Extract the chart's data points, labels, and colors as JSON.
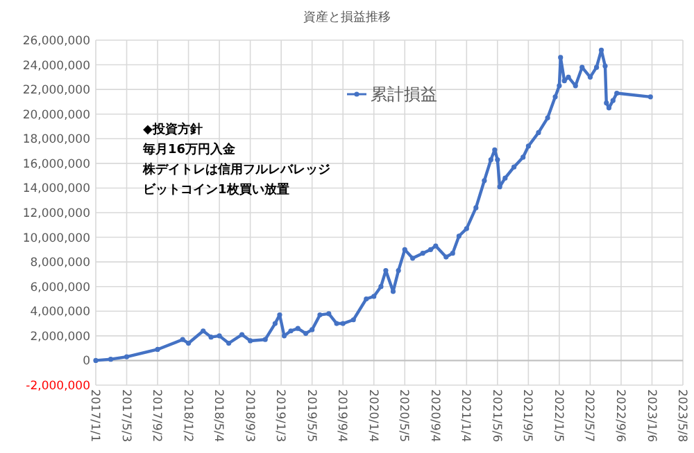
{
  "chart_data": {
    "type": "line",
    "title": "資産と損益推移",
    "marker": "circle",
    "grid": true,
    "legend": "top",
    "annotations": [
      "◆投資方針",
      "毎月16万円入金",
      "株デイトレは信用フルレバレッジ",
      "ビットコイン1枚買い放置"
    ],
    "xlim": [
      "2017-01-01",
      "2023-05-08"
    ],
    "xticks": [
      {
        "value": "2017-01-01",
        "label": "2017/1/1"
      },
      {
        "value": "2017-05-03",
        "label": "2017/5/3"
      },
      {
        "value": "2017-09-02",
        "label": "2017/9/2"
      },
      {
        "value": "2018-01-02",
        "label": "2018/1/2"
      },
      {
        "value": "2018-05-04",
        "label": "2018/5/4"
      },
      {
        "value": "2018-09-03",
        "label": "2018/9/3"
      },
      {
        "value": "2019-01-03",
        "label": "2019/1/3"
      },
      {
        "value": "2019-05-05",
        "label": "2019/5/5"
      },
      {
        "value": "2019-09-04",
        "label": "2019/9/4"
      },
      {
        "value": "2020-01-04",
        "label": "2020/1/4"
      },
      {
        "value": "2020-05-05",
        "label": "2020/5/5"
      },
      {
        "value": "2020-09-04",
        "label": "2020/9/4"
      },
      {
        "value": "2021-01-04",
        "label": "2021/1/4"
      },
      {
        "value": "2021-05-06",
        "label": "2021/5/6"
      },
      {
        "value": "2021-09-05",
        "label": "2021/9/5"
      },
      {
        "value": "2022-01-05",
        "label": "2022/1/5"
      },
      {
        "value": "2022-05-07",
        "label": "2022/5/7"
      },
      {
        "value": "2022-09-06",
        "label": "2022/9/6"
      },
      {
        "value": "2023-01-06",
        "label": "2023/1/6"
      },
      {
        "value": "2023-05-08",
        "label": "2023/5/8"
      }
    ],
    "ylim": [
      -2000000,
      26000000
    ],
    "yticks": [
      {
        "value": -2000000,
        "label": "-2,000,000"
      },
      {
        "value": 0,
        "label": "0"
      },
      {
        "value": 2000000,
        "label": "2,000,000"
      },
      {
        "value": 4000000,
        "label": "4,000,000"
      },
      {
        "value": 6000000,
        "label": "6,000,000"
      },
      {
        "value": 8000000,
        "label": "8,000,000"
      },
      {
        "value": 10000000,
        "label": "10,000,000"
      },
      {
        "value": 12000000,
        "label": "12,000,000"
      },
      {
        "value": 14000000,
        "label": "14,000,000"
      },
      {
        "value": 16000000,
        "label": "16,000,000"
      },
      {
        "value": 18000000,
        "label": "18,000,000"
      },
      {
        "value": 20000000,
        "label": "20,000,000"
      },
      {
        "value": 22000000,
        "label": "22,000,000"
      },
      {
        "value": 24000000,
        "label": "24,000,000"
      },
      {
        "value": 26000000,
        "label": "26,000,000"
      }
    ],
    "series": [
      {
        "name": "累計損益",
        "color": "#4472c4",
        "x": [
          "2017-01-01",
          "2017-03-01",
          "2017-05-03",
          "2017-09-02",
          "2017-12-10",
          "2018-01-02",
          "2018-03-01",
          "2018-04-01",
          "2018-05-04",
          "2018-06-10",
          "2018-08-01",
          "2018-09-03",
          "2018-11-01",
          "2018-12-10",
          "2018-12-28",
          "2019-01-15",
          "2019-02-10",
          "2019-03-10",
          "2019-04-10",
          "2019-05-05",
          "2019-06-05",
          "2019-07-10",
          "2019-08-10",
          "2019-09-04",
          "2019-10-15",
          "2019-12-05",
          "2020-01-04",
          "2020-02-01",
          "2020-02-20",
          "2020-03-20",
          "2020-04-10",
          "2020-05-05",
          "2020-06-05",
          "2020-07-15",
          "2020-08-15",
          "2020-09-04",
          "2020-10-15",
          "2020-11-10",
          "2020-12-05",
          "2021-01-04",
          "2021-02-10",
          "2021-03-15",
          "2021-04-10",
          "2021-04-25",
          "2021-05-06",
          "2021-05-15",
          "2021-06-05",
          "2021-07-10",
          "2021-08-15",
          "2021-09-05",
          "2021-10-15",
          "2021-11-20",
          "2021-12-20",
          "2022-01-05",
          "2022-01-10",
          "2022-01-25",
          "2022-02-10",
          "2022-03-10",
          "2022-04-05",
          "2022-05-07",
          "2022-06-01",
          "2022-06-20",
          "2022-07-05",
          "2022-07-10",
          "2022-07-20",
          "2022-08-05",
          "2022-08-20",
          "2022-12-31"
        ],
        "values": [
          0,
          100000,
          300000,
          900000,
          1700000,
          1400000,
          2400000,
          1900000,
          2000000,
          1400000,
          2100000,
          1600000,
          1700000,
          3000000,
          3700000,
          2000000,
          2400000,
          2600000,
          2200000,
          2500000,
          3700000,
          3800000,
          3000000,
          3000000,
          3300000,
          5000000,
          5200000,
          6000000,
          7300000,
          5600000,
          7300000,
          9000000,
          8300000,
          8700000,
          9000000,
          9300000,
          8400000,
          8700000,
          10100000,
          10700000,
          12400000,
          14600000,
          16300000,
          17100000,
          16300000,
          14100000,
          14800000,
          15700000,
          16500000,
          17400000,
          18500000,
          19700000,
          21400000,
          22300000,
          24600000,
          22700000,
          23000000,
          22300000,
          23800000,
          23000000,
          23800000,
          25200000,
          23900000,
          20900000,
          20500000,
          21100000,
          21700000,
          21400000
        ]
      }
    ]
  }
}
